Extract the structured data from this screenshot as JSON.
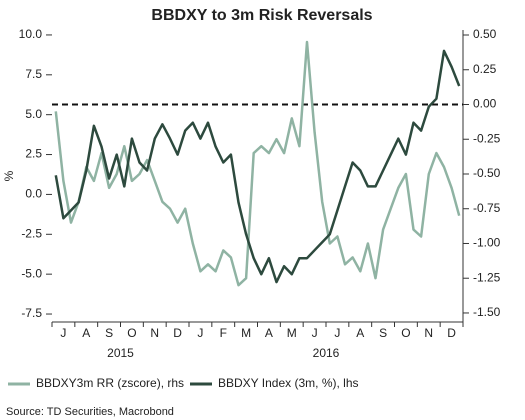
{
  "chart_data": {
    "type": "line",
    "title": "BBDXY to 3m Risk Reversals",
    "ylabel": "%",
    "x": [
      null,
      "J",
      null,
      null,
      "A",
      null,
      null,
      "S",
      null,
      null,
      "O",
      null,
      null,
      "N",
      null,
      null,
      "D",
      null,
      null,
      "J",
      null,
      null,
      "F",
      null,
      null,
      "M",
      null,
      null,
      "A",
      null,
      null,
      "M",
      null,
      null,
      "J",
      null,
      null,
      "J",
      null,
      null,
      "A",
      null,
      null,
      "S",
      null,
      null,
      "O",
      null,
      null,
      "N",
      null,
      null,
      "D",
      null
    ],
    "years": [
      "2015",
      "2016"
    ],
    "ylim": [
      -8.0,
      10.31
    ],
    "yticks": [
      {
        "value": 10,
        "label": "10.0"
      },
      7.5,
      {
        "value": 5,
        "label": "5.0"
      },
      2.5,
      {
        "value": 0,
        "label": "0.0"
      },
      -2.5,
      {
        "value": -5,
        "label": "-5.0"
      },
      -7.5
    ],
    "y2lim": [
      -1.565,
      0.536
    ],
    "y2ticks": [
      {
        "value": 0.5,
        "label": "0.50"
      },
      {
        "value": 0.25,
        "label": "0.25"
      },
      {
        "value": 0,
        "label": "0.00"
      },
      {
        "value": -0.25,
        "label": "-0.25"
      },
      {
        "value": -0.5,
        "label": "-0.50"
      },
      {
        "value": -0.75,
        "label": "-0.75"
      },
      {
        "value": -1,
        "label": "-1.00"
      },
      {
        "value": -1.25,
        "label": "-1.25"
      },
      {
        "value": -1.5,
        "label": "-1.50"
      }
    ],
    "y2_reference_line": 0,
    "series": [
      {
        "name": "BBDXY3m RR (zscore), rhs",
        "color": "#8fb3a3",
        "axis": "y2",
        "values": [
          -0.05,
          -0.55,
          -0.85,
          -0.7,
          -0.45,
          -0.55,
          -0.35,
          -0.6,
          -0.5,
          -0.3,
          -0.55,
          -0.5,
          -0.4,
          -0.55,
          -0.7,
          -0.75,
          -0.85,
          -0.75,
          -1.0,
          -1.2,
          -1.15,
          -1.2,
          -1.05,
          -1.1,
          -1.3,
          -1.25,
          -0.35,
          -0.3,
          -0.35,
          -0.25,
          -0.35,
          -0.1,
          -0.3,
          0.45,
          -0.2,
          -0.7,
          -1.0,
          -0.95,
          -1.15,
          -1.1,
          -1.2,
          -1.0,
          -1.25,
          -0.9,
          -0.75,
          -0.6,
          -0.5,
          -0.9,
          -0.95,
          -0.5,
          -0.35,
          -0.45,
          -0.6,
          -0.8
        ]
      },
      {
        "name": "BBDXY Index (3m, %), lhs",
        "color": "#2d4a3e",
        "values": [
          1.2,
          -1.5,
          -1.0,
          -0.5,
          1.5,
          4.3,
          3.0,
          1.0,
          2.5,
          0.5,
          3.5,
          2.0,
          1.5,
          3.5,
          4.4,
          3.5,
          2.5,
          4.0,
          4.5,
          3.5,
          4.5,
          3.0,
          2.0,
          2.5,
          -0.5,
          -2.5,
          -4.0,
          -5.0,
          -4.0,
          -5.5,
          -4.5,
          -5.0,
          -4.0,
          -4.0,
          -3.5,
          -3.0,
          -2.5,
          -1.0,
          0.5,
          2.0,
          1.5,
          0.5,
          0.5,
          1.5,
          2.5,
          3.5,
          2.5,
          4.5,
          4.0,
          5.5,
          6.0,
          9.0,
          8.0,
          6.8
        ]
      }
    ],
    "legend": "bottom",
    "source": "Source: TD Securities, Macrobond"
  }
}
